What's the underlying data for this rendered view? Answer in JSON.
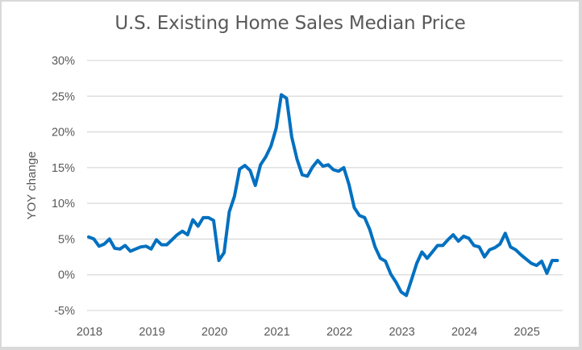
{
  "chart_data": {
    "type": "line",
    "title": "U.S. Existing Home Sales Median Price",
    "xlabel": "",
    "ylabel": "YOY change",
    "ylim": [
      -5,
      30
    ],
    "yticks": [
      -5,
      0,
      5,
      10,
      15,
      20,
      25,
      30
    ],
    "ytick_labels": [
      "-5%",
      "0%",
      "5%",
      "10%",
      "15%",
      "20%",
      "25%",
      "30%"
    ],
    "xtick_labels": [
      "2018",
      "2019",
      "2020",
      "2021",
      "2022",
      "2023",
      "2024",
      "2025"
    ],
    "x_start": "2018-01",
    "x_frequency": "monthly",
    "grid": "horizontal",
    "legend": "none",
    "series": [
      {
        "name": "YOY change",
        "color": "#0070c0",
        "values": [
          5.3,
          5.0,
          4.0,
          4.3,
          5.0,
          3.7,
          3.6,
          4.1,
          3.3,
          3.6,
          3.9,
          4.0,
          3.6,
          4.9,
          4.2,
          4.2,
          4.9,
          5.6,
          6.1,
          5.6,
          7.7,
          6.8,
          8.0,
          8.0,
          7.6,
          2.0,
          3.1,
          8.8,
          11.0,
          14.8,
          15.3,
          14.6,
          12.5,
          15.4,
          16.5,
          18.0,
          20.5,
          25.2,
          24.7,
          19.3,
          16.2,
          14.0,
          13.8,
          15.1,
          16.0,
          15.2,
          15.4,
          14.7,
          14.5,
          15.0,
          12.6,
          9.4,
          8.3,
          8.0,
          6.3,
          3.9,
          2.3,
          1.9,
          0.1,
          -1.0,
          -2.4,
          -2.9,
          -0.7,
          1.6,
          3.2,
          2.3,
          3.2,
          4.1,
          4.1,
          4.9,
          5.6,
          4.7,
          5.4,
          5.1,
          4.1,
          3.9,
          2.5,
          3.5,
          3.8,
          4.3,
          5.8,
          3.9,
          3.5,
          2.8,
          2.2,
          1.6,
          1.3,
          1.9,
          0.2,
          2.0,
          2.0
        ]
      }
    ]
  }
}
